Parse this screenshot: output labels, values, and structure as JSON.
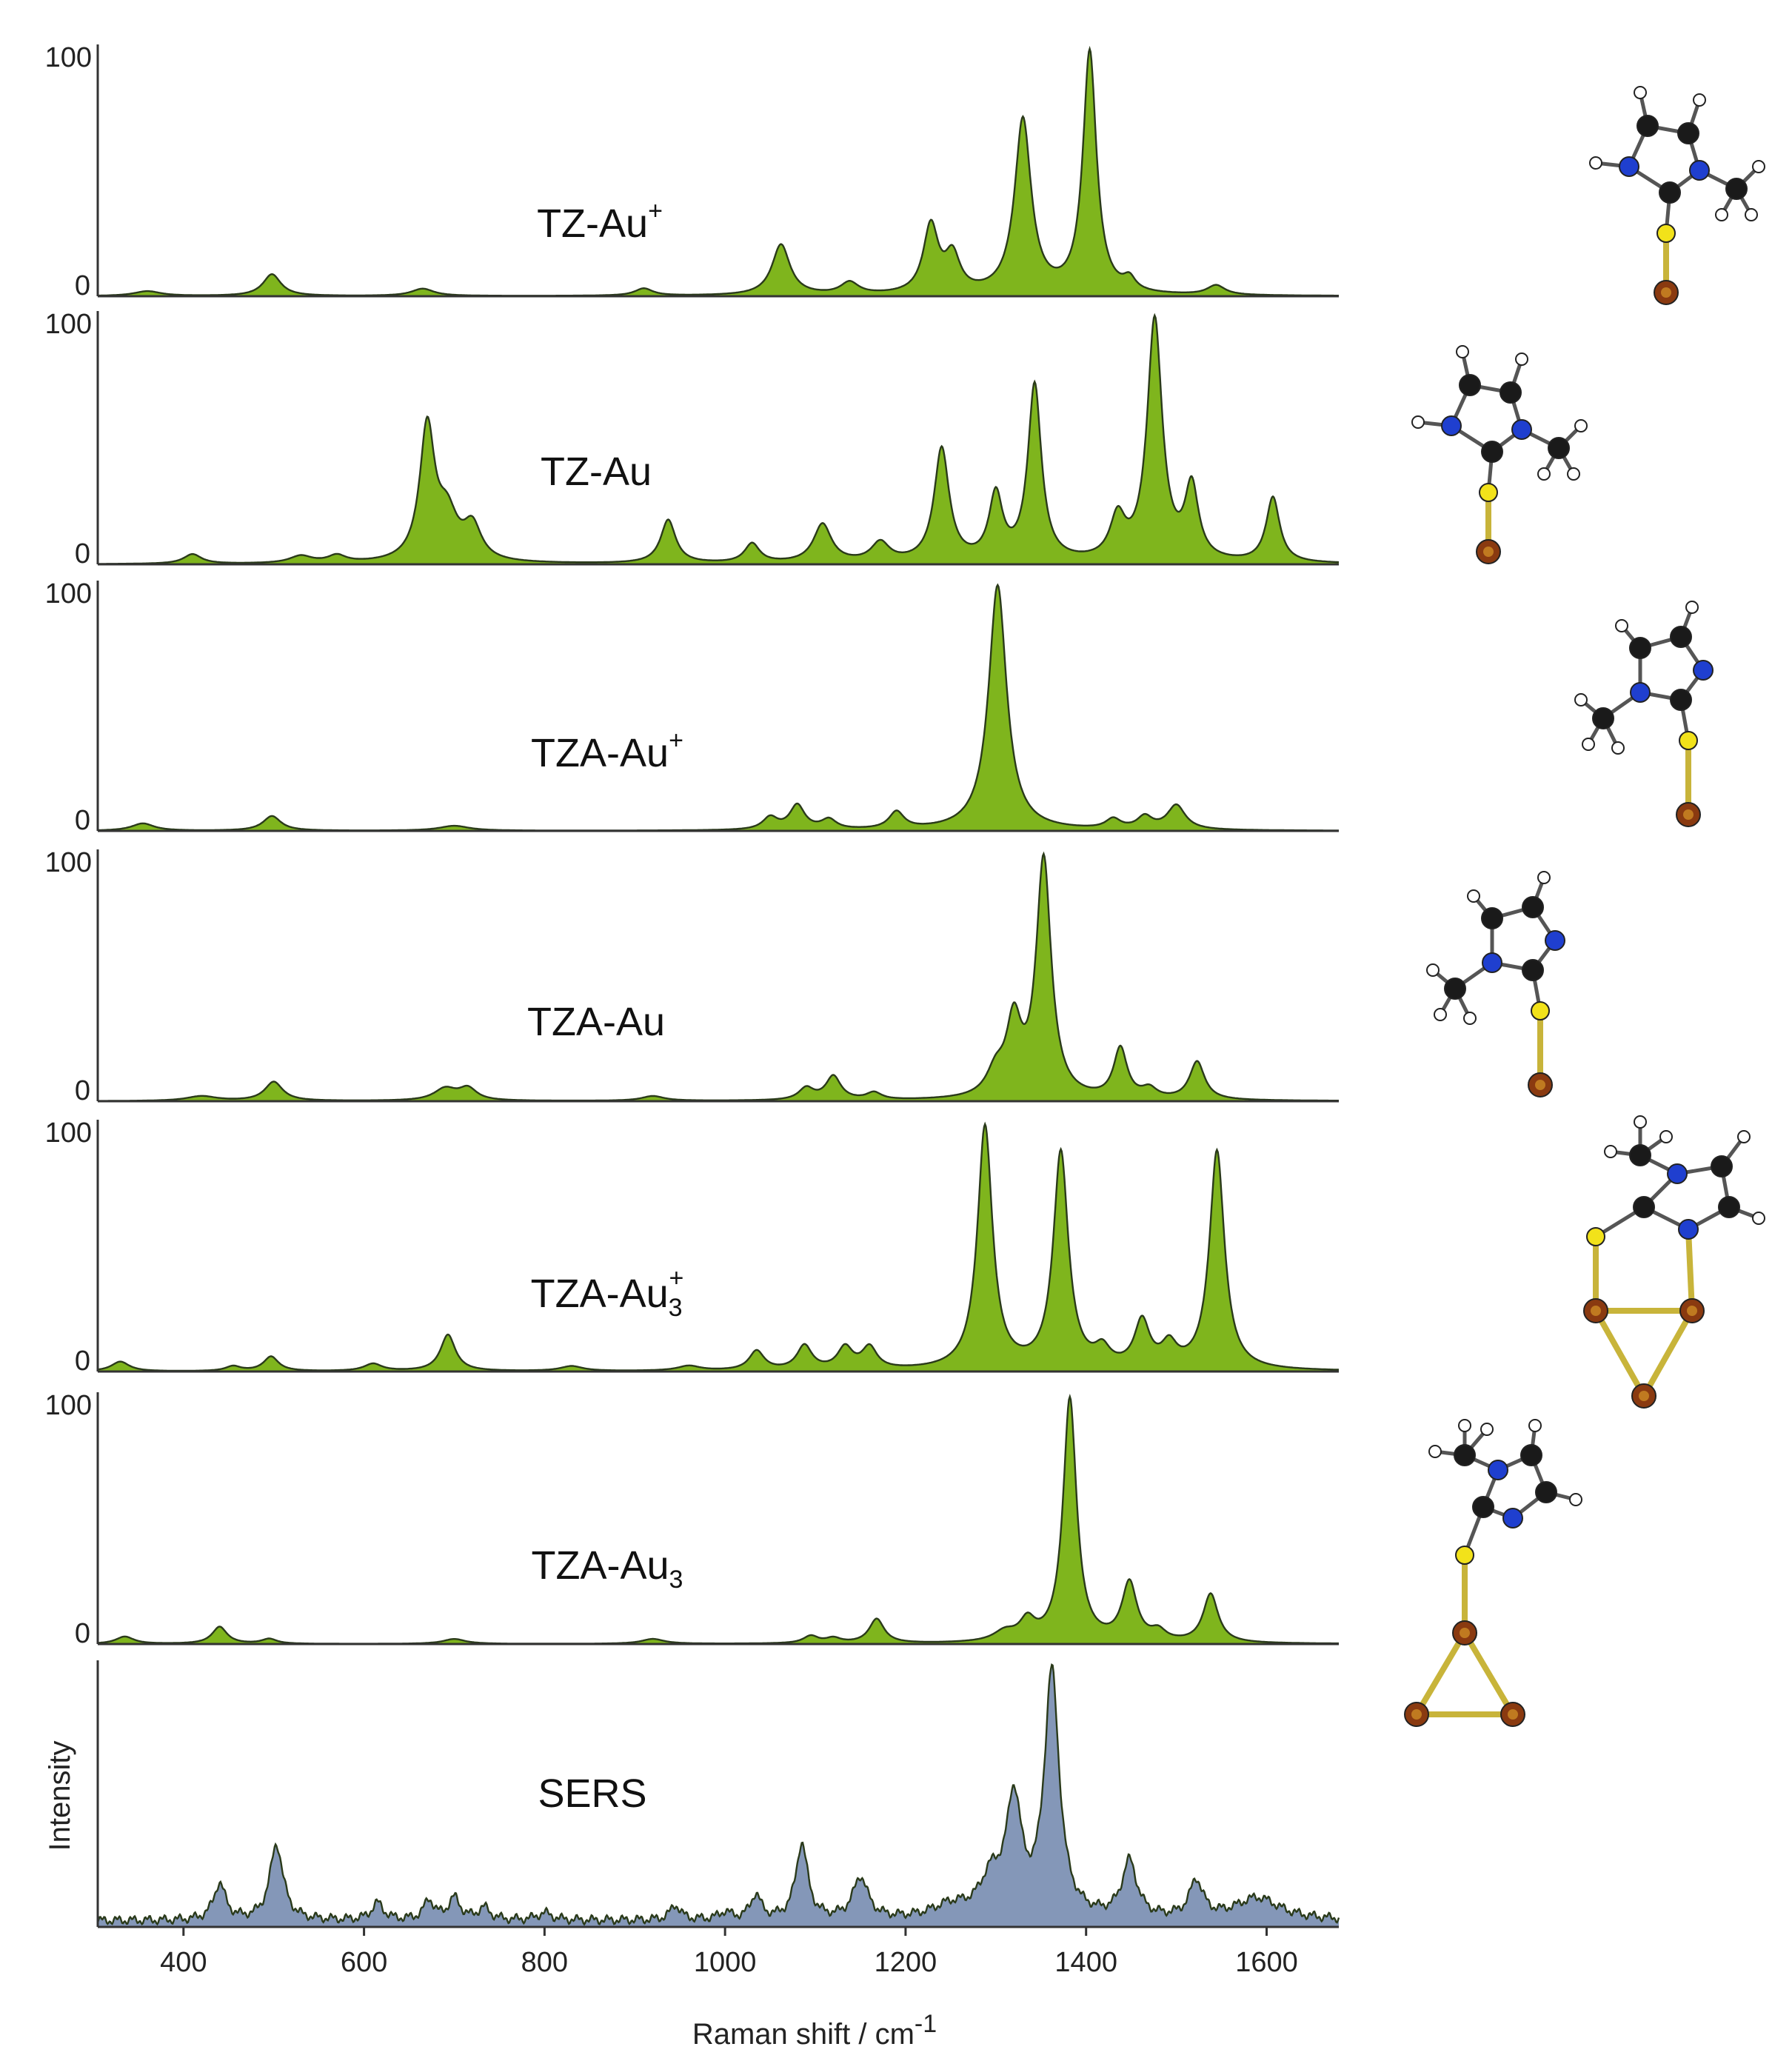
{
  "chart_data": {
    "type": "area",
    "xlabel": "Raman shift / cm",
    "xlabel_superscript": "-1",
    "ylabel": "Intensity",
    "xlim": [
      305,
      1680
    ],
    "x_ticks": [
      400,
      600,
      800,
      1000,
      1200,
      1400,
      1600
    ],
    "grid": false,
    "colors": {
      "computed": "#7fb51d",
      "sers": "#8497b8",
      "outline": "#2a3a1a"
    },
    "panels": [
      {
        "name": "TZ-Au",
        "superscript": "+",
        "subscript": "",
        "kind": "computed",
        "ylim": [
          0,
          100
        ],
        "y_ticks": [
          "100",
          "0"
        ],
        "peaks": [
          [
            360,
            2,
            18
          ],
          [
            498,
            9,
            12
          ],
          [
            665,
            3,
            15
          ],
          [
            910,
            3,
            12
          ],
          [
            1062,
            21,
            12
          ],
          [
            1138,
            5,
            12
          ],
          [
            1228,
            28,
            10
          ],
          [
            1252,
            15,
            10
          ],
          [
            1330,
            72,
            11
          ],
          [
            1404,
            100,
            9
          ],
          [
            1448,
            5,
            8
          ],
          [
            1544,
            4,
            12
          ]
        ]
      },
      {
        "name": "TZ-Au",
        "superscript": "",
        "subscript": "",
        "kind": "computed",
        "ylim": [
          0,
          100
        ],
        "y_ticks": [
          "100",
          "0"
        ],
        "peaks": [
          [
            410,
            4,
            12
          ],
          [
            530,
            3,
            15
          ],
          [
            570,
            3,
            12
          ],
          [
            670,
            55,
            10
          ],
          [
            692,
            18,
            14
          ],
          [
            720,
            14,
            12
          ],
          [
            937,
            18,
            10
          ],
          [
            1030,
            8,
            10
          ],
          [
            1108,
            16,
            12
          ],
          [
            1172,
            8,
            12
          ],
          [
            1240,
            47,
            10
          ],
          [
            1300,
            27,
            9
          ],
          [
            1343,
            73,
            9
          ],
          [
            1435,
            17,
            10
          ],
          [
            1476,
            100,
            10
          ],
          [
            1517,
            30,
            9
          ],
          [
            1607,
            27,
            9
          ]
        ]
      },
      {
        "name": "TZA-Au",
        "superscript": "+",
        "subscript": "",
        "kind": "computed",
        "ylim": [
          0,
          100
        ],
        "y_ticks": [
          "100",
          "0"
        ],
        "peaks": [
          [
            355,
            3,
            15
          ],
          [
            498,
            6,
            12
          ],
          [
            700,
            2,
            20
          ],
          [
            1050,
            5,
            10
          ],
          [
            1080,
            10,
            10
          ],
          [
            1115,
            4,
            10
          ],
          [
            1190,
            7,
            10
          ],
          [
            1302,
            100,
            12
          ],
          [
            1430,
            4,
            10
          ],
          [
            1465,
            5,
            10
          ],
          [
            1500,
            10,
            12
          ]
        ]
      },
      {
        "name": "TZA-Au",
        "superscript": "",
        "subscript": "",
        "kind": "computed",
        "ylim": [
          0,
          100
        ],
        "y_ticks": [
          "100",
          "0"
        ],
        "peaks": [
          [
            420,
            2,
            20
          ],
          [
            500,
            8,
            12
          ],
          [
            690,
            5,
            15
          ],
          [
            715,
            5,
            12
          ],
          [
            920,
            2,
            15
          ],
          [
            1090,
            5,
            10
          ],
          [
            1120,
            10,
            10
          ],
          [
            1165,
            3,
            10
          ],
          [
            1300,
            10,
            12
          ],
          [
            1320,
            30,
            10
          ],
          [
            1353,
            100,
            10
          ],
          [
            1438,
            21,
            9
          ],
          [
            1470,
            4,
            10
          ],
          [
            1523,
            16,
            10
          ]
        ]
      },
      {
        "name": "TZA-Au",
        "superscript": "+",
        "subscript": "3",
        "kind": "computed",
        "ylim": [
          0,
          100
        ],
        "y_ticks": [
          "100",
          "0"
        ],
        "peaks": [
          [
            330,
            4,
            12
          ],
          [
            455,
            2,
            10
          ],
          [
            497,
            6,
            10
          ],
          [
            610,
            3,
            12
          ],
          [
            693,
            15,
            10
          ],
          [
            830,
            2,
            15
          ],
          [
            960,
            2,
            15
          ],
          [
            1035,
            8,
            10
          ],
          [
            1088,
            10,
            10
          ],
          [
            1133,
            9,
            10
          ],
          [
            1160,
            9,
            10
          ],
          [
            1288,
            100,
            10
          ],
          [
            1372,
            89,
            10
          ],
          [
            1418,
            7,
            10
          ],
          [
            1462,
            19,
            10
          ],
          [
            1492,
            9,
            10
          ],
          [
            1545,
            90,
            10
          ]
        ]
      },
      {
        "name": "TZA-Au",
        "superscript": "",
        "subscript": "3",
        "kind": "computed",
        "ylim": [
          0,
          100
        ],
        "y_ticks": [
          "100",
          "0"
        ],
        "peaks": [
          [
            335,
            3,
            12
          ],
          [
            440,
            7,
            10
          ],
          [
            495,
            2,
            10
          ],
          [
            700,
            2,
            15
          ],
          [
            920,
            2,
            15
          ],
          [
            1095,
            3,
            10
          ],
          [
            1120,
            2,
            10
          ],
          [
            1168,
            10,
            10
          ],
          [
            1310,
            4,
            15
          ],
          [
            1335,
            8,
            10
          ],
          [
            1382,
            100,
            9
          ],
          [
            1448,
            24,
            10
          ],
          [
            1480,
            4,
            10
          ],
          [
            1538,
            20,
            10
          ]
        ]
      },
      {
        "name": "SERS",
        "superscript": "",
        "subscript": "",
        "kind": "sers",
        "ylim": [
          0,
          100
        ],
        "y_ticks": [],
        "peaks": [
          [
            440,
            15,
            8
          ],
          [
            503,
            31,
            9
          ],
          [
            615,
            7,
            8
          ],
          [
            672,
            8,
            7
          ],
          [
            700,
            9,
            8
          ],
          [
            733,
            5,
            8
          ],
          [
            800,
            3,
            10
          ],
          [
            945,
            6,
            7
          ],
          [
            1000,
            3,
            8
          ],
          [
            1034,
            10,
            7
          ],
          [
            1085,
            31,
            8
          ],
          [
            1150,
            17,
            10
          ],
          [
            1250,
            5,
            25
          ],
          [
            1295,
            15,
            15
          ],
          [
            1320,
            46,
            10
          ],
          [
            1362,
            100,
            10
          ],
          [
            1448,
            23,
            10
          ],
          [
            1522,
            15,
            9
          ],
          [
            1590,
            9,
            30
          ]
        ]
      }
    ]
  }
}
